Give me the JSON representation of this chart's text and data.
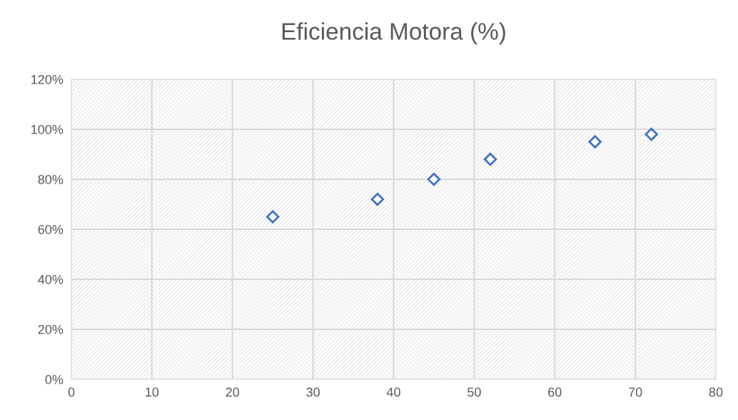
{
  "chart_data": {
    "type": "scatter",
    "title": "Eficiencia Motora (%)",
    "x": [
      25,
      38,
      45,
      52,
      65,
      72
    ],
    "series": [
      {
        "color": "#4472c4",
        "values": [
          65,
          72,
          80,
          88,
          95,
          98
        ]
      }
    ],
    "marker": "diamond",
    "grid": true,
    "xlim": [
      0,
      80
    ],
    "xticks": [
      0,
      10,
      20,
      30,
      40,
      50,
      60,
      70,
      80
    ],
    "ylim": [
      0,
      120
    ],
    "yticks": [
      {
        "value": 0,
        "label": "0%"
      },
      {
        "value": 20,
        "label": "20%"
      },
      {
        "value": 40,
        "label": "40%"
      },
      {
        "value": 60,
        "label": "60%"
      },
      {
        "value": 80,
        "label": "80%"
      },
      {
        "value": 100,
        "label": "100%"
      },
      {
        "value": 120,
        "label": "120%"
      }
    ]
  }
}
